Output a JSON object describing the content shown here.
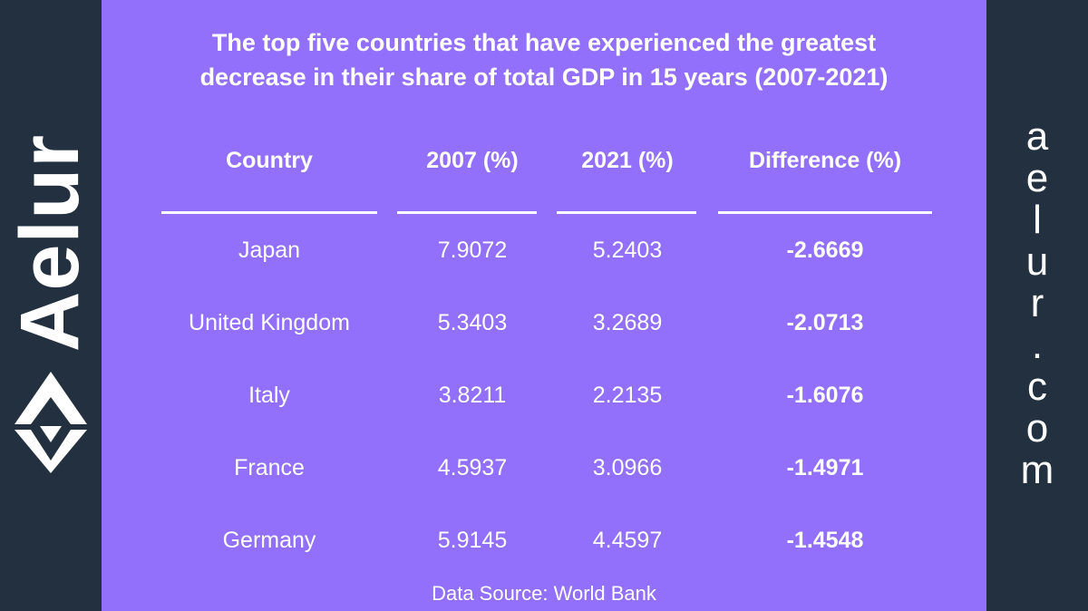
{
  "brand": {
    "wordmark": "Aelur",
    "url_letters": [
      "a",
      "e",
      "l",
      "u",
      "r",
      ".",
      "c",
      "o",
      "m"
    ],
    "logo_icon": "aelur-logo-icon",
    "colors": {
      "panel": "#9370fb",
      "band": "#22303f",
      "text": "#ffffff"
    }
  },
  "chart_data": {
    "type": "table",
    "title_lines": [
      "The top five countries that have experienced the greatest",
      "decrease in their share of total GDP in 15 years (2007-2021)"
    ],
    "columns": [
      "Country",
      "2007 (%)",
      "2021 (%)",
      "Difference (%)"
    ],
    "rows": [
      {
        "country": "Japan",
        "y2007": "7.9072",
        "y2021": "5.2403",
        "diff": "-2.6669"
      },
      {
        "country": "United Kingdom",
        "y2007": "5.3403",
        "y2021": "3.2689",
        "diff": "-2.0713"
      },
      {
        "country": "Italy",
        "y2007": "3.8211",
        "y2021": "2.2135",
        "diff": "-1.6076"
      },
      {
        "country": "France",
        "y2007": "4.5937",
        "y2021": "3.0966",
        "diff": "-1.4971"
      },
      {
        "country": "Germany",
        "y2007": "5.9145",
        "y2021": "4.4597",
        "diff": "-1.4548"
      }
    ],
    "source": "Data Source: World Bank"
  }
}
